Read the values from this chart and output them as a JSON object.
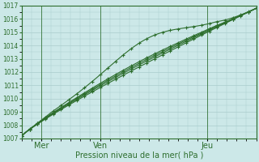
{
  "title": "",
  "xlabel": "Pression niveau de la mer( hPa )",
  "ylabel": "",
  "xlim": [
    0,
    120
  ],
  "ylim": [
    1007,
    1017
  ],
  "yticks": [
    1007,
    1008,
    1009,
    1010,
    1011,
    1012,
    1013,
    1014,
    1015,
    1016,
    1017
  ],
  "xtick_positions": [
    10,
    40,
    95
  ],
  "xtick_labels": [
    "Mer",
    "Ven",
    "Jeu"
  ],
  "vline_positions": [
    10,
    40,
    95
  ],
  "background_color": "#cce8e8",
  "grid_color": "#aacccc",
  "line_color": "#2d6e2d",
  "marker_color": "#2d6e2d",
  "axis_color": "#2d6e2d",
  "text_color": "#2d6e2d",
  "figsize": [
    3.2,
    2.0
  ],
  "dpi": 100
}
